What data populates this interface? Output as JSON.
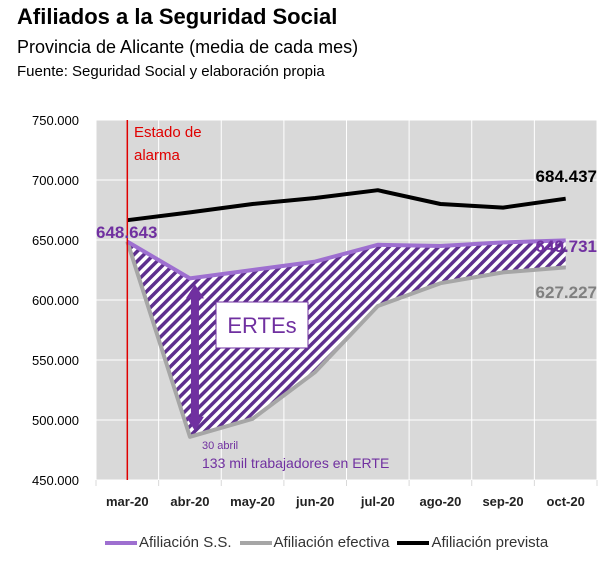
{
  "header": {
    "title": "Afiliados a la Seguridad Social",
    "subtitle": "Provincia de Alicante (media de cada mes)",
    "source": "Fuente: Seguridad Social y elaboración propia"
  },
  "chart_data": {
    "type": "line",
    "title": "Afiliados a la Seguridad Social",
    "subtitle": "Provincia de Alicante (media de cada mes)",
    "xlabel": "",
    "ylabel": "",
    "categories": [
      "mar-20",
      "abr-20",
      "may-20",
      "jun-20",
      "jul-20",
      "ago-20",
      "sep-20",
      "oct-20"
    ],
    "y_ticks": [
      "450.000",
      "500.000",
      "550.000",
      "600.000",
      "650.000",
      "700.000",
      "750.000"
    ],
    "y_tick_values": [
      450000,
      500000,
      550000,
      600000,
      650000,
      700000,
      750000
    ],
    "ylim": [
      450000,
      750000
    ],
    "grid": true,
    "legend_position": "bottom",
    "series": [
      {
        "name": "Afiliación S.S.",
        "color": "#9e6fd0",
        "values": [
          648643,
          618000,
          625000,
          632000,
          646000,
          645000,
          648000,
          649731
        ]
      },
      {
        "name": "Afiliación efectiva",
        "color": "#a6a6a6",
        "values": [
          648643,
          486000,
          501000,
          540000,
          595000,
          614000,
          623000,
          627227
        ]
      },
      {
        "name": "Afiliación prevista",
        "color": "#000000",
        "values": [
          666500,
          673000,
          680000,
          685000,
          691500,
          680000,
          677000,
          684437
        ]
      }
    ],
    "annotations": {
      "event_line": {
        "label_line1": "Estado de",
        "label_line2": "alarma",
        "category": "mar-20",
        "color": "#e00000"
      },
      "start_label": {
        "text": "648.643",
        "color": "#7030a0"
      },
      "end_labels": [
        {
          "text": "684.437",
          "color": "#000000"
        },
        {
          "text": "649.731",
          "color": "#7030a0"
        },
        {
          "text": "627.227",
          "color": "#808080"
        }
      ],
      "band_label": "ERTEs",
      "band_color": "#5e2f8e",
      "note_small": "30 abril",
      "note_main": "133 mil trabajadores en ERTE",
      "note_color": "#7030a0"
    }
  }
}
